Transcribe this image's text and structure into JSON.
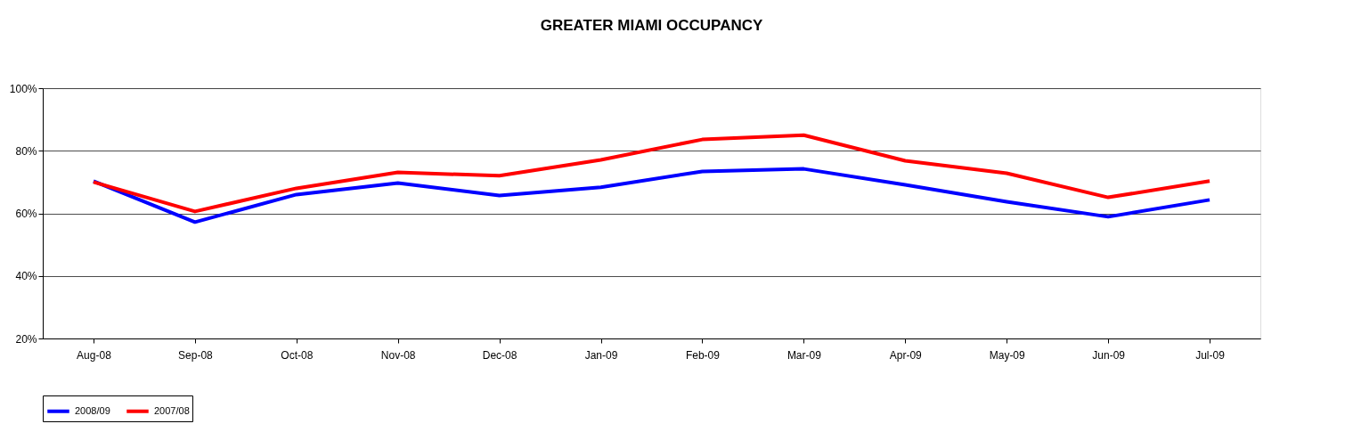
{
  "chart_data": {
    "type": "line",
    "title": "GREATER MIAMI OCCUPANCY",
    "categories": [
      "Aug-08",
      "Sep-08",
      "Oct-08",
      "Nov-08",
      "Dec-08",
      "Jan-09",
      "Feb-09",
      "Mar-09",
      "Apr-09",
      "May-09",
      "Jun-09",
      "Jul-09"
    ],
    "series": [
      {
        "name": "2008/09",
        "color": "#0000ff",
        "values": [
          70.3,
          57.2,
          66,
          69.7,
          65.7,
          68.3,
          73.4,
          74.2,
          69.1,
          63.7,
          58.9,
          64.3
        ]
      },
      {
        "name": "2007/08",
        "color": "#ff0000",
        "values": [
          70,
          60.6,
          68,
          73.1,
          72,
          77.1,
          83.6,
          85,
          76.8,
          72.8,
          65.1,
          70.3
        ]
      }
    ],
    "ylim": [
      20,
      100
    ],
    "yticks": [
      {
        "value": 20,
        "label": "20%"
      },
      {
        "value": 40,
        "label": "40%"
      },
      {
        "value": 60,
        "label": "60%"
      },
      {
        "value": 80,
        "label": "80%"
      },
      {
        "value": 100,
        "label": "100%"
      }
    ],
    "grid": "y",
    "legend": "bottom",
    "marker": "none",
    "line_style": "solid"
  }
}
